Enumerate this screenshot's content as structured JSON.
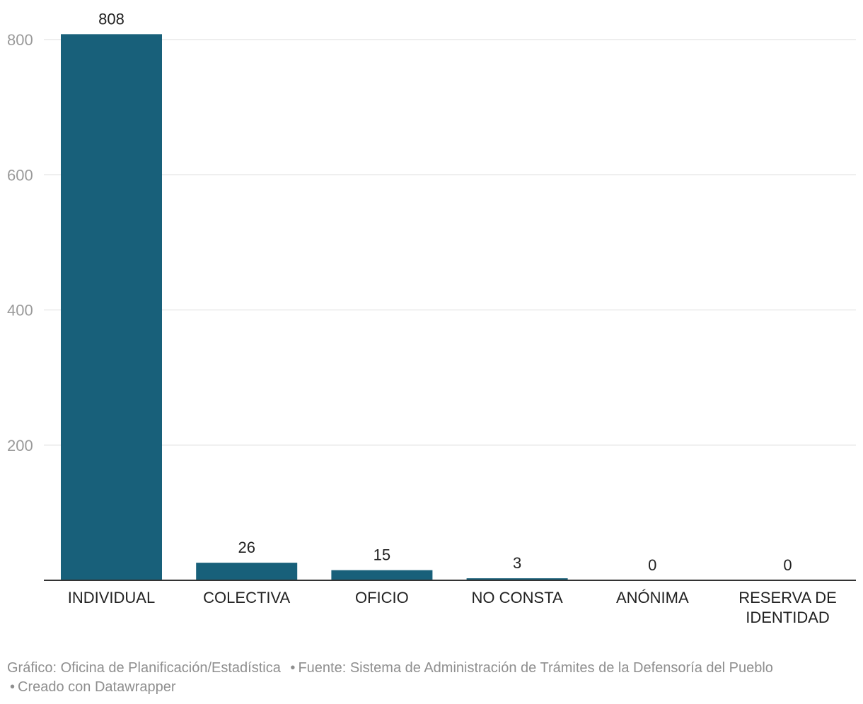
{
  "chart_data": {
    "type": "bar",
    "categories": [
      "INDIVIDUAL",
      "COLECTIVA",
      "OFICIO",
      "NO CONSTA",
      "ANÓNIMA",
      "RESERVA DE IDENTIDAD"
    ],
    "values": [
      808,
      26,
      15,
      3,
      0,
      0
    ],
    "data_labels": [
      "808",
      "26",
      "15",
      "3",
      "0",
      "0"
    ],
    "ylim": [
      0,
      800
    ],
    "yticks": [
      200,
      400,
      600,
      800
    ],
    "grid": true,
    "colors": {
      "bar": "#18607a",
      "grid": "#e3e3e3",
      "baseline": "#333333",
      "tick_label": "#9a9a9a",
      "category_label": "#222222",
      "value_label": "#222222"
    }
  },
  "footer": {
    "grafico": "Gráfico: Oficina de Planificación/Estadística",
    "fuente": "Fuente: Sistema de Administración de Trámites de la Defensoría del Pueblo",
    "creado": "Creado con Datawrapper",
    "separator": "•"
  }
}
